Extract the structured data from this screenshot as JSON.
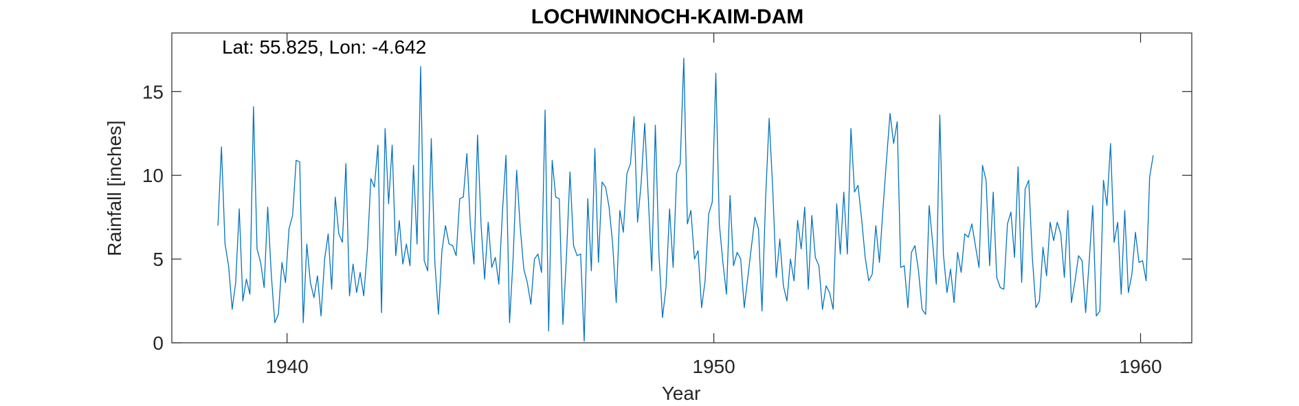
{
  "chart_data": {
    "type": "line",
    "title": "LOCHWINNOCH-KAIM-DAM",
    "annotation": "Lat: 55.825, Lon: -4.642",
    "xlabel": "Year",
    "ylabel": "Rainfall [inches]",
    "xlim": [
      1937.3,
      1961.2
    ],
    "ylim": [
      0,
      18.5
    ],
    "x_ticks": [
      1940,
      1950,
      1960
    ],
    "y_ticks": [
      0,
      5,
      10,
      15
    ],
    "grid": false,
    "series": [
      {
        "color": "#0072BD",
        "x_start": 1938.38,
        "x_step": 0.0833333,
        "values": [
          7.0,
          11.7,
          5.9,
          4.6,
          2.0,
          3.6,
          8.0,
          2.5,
          3.8,
          2.9,
          14.1,
          5.6,
          4.8,
          3.3,
          8.1,
          4.1,
          1.2,
          1.7,
          4.8,
          3.6,
          6.8,
          7.6,
          10.9,
          10.8,
          1.2,
          5.9,
          3.6,
          2.7,
          4.0,
          1.6,
          5.0,
          6.5,
          3.2,
          8.7,
          6.5,
          6.0,
          10.7,
          2.8,
          4.7,
          3.0,
          4.2,
          2.8,
          5.5,
          9.8,
          9.3,
          11.8,
          1.8,
          12.8,
          8.3,
          11.8,
          5.2,
          7.3,
          4.7,
          5.9,
          4.6,
          10.6,
          5.9,
          16.5,
          4.9,
          4.3,
          12.2,
          4.8,
          1.7,
          5.5,
          7.0,
          5.9,
          5.8,
          5.2,
          8.6,
          8.7,
          11.3,
          7.0,
          4.7,
          12.4,
          7.0,
          3.8,
          7.2,
          4.5,
          5.1,
          3.5,
          7.8,
          11.2,
          1.2,
          5.0,
          10.3,
          6.9,
          4.4,
          3.6,
          2.3,
          5.0,
          5.3,
          4.2,
          13.9,
          0.7,
          10.9,
          8.7,
          8.6,
          1.1,
          5.1,
          10.2,
          5.8,
          5.2,
          5.3,
          0.1,
          8.6,
          4.3,
          11.6,
          4.8,
          9.6,
          9.3,
          8.1,
          5.9,
          2.4,
          7.9,
          6.6,
          10.1,
          10.7,
          13.5,
          7.2,
          9.5,
          13.1,
          8.7,
          4.3,
          13.0,
          5.3,
          1.5,
          3.3,
          8.0,
          4.5,
          10.1,
          10.7,
          17.0,
          7.1,
          7.9,
          5.0,
          5.5,
          2.1,
          3.7,
          7.7,
          8.4,
          16.1,
          7.1,
          4.8,
          2.9,
          8.8,
          4.6,
          5.4,
          5.0,
          2.1,
          3.9,
          5.7,
          7.5,
          6.8,
          1.9,
          8.6,
          13.4,
          9.2,
          3.9,
          6.2,
          3.4,
          2.5,
          5.0,
          3.7,
          7.3,
          5.6,
          8.1,
          3.2,
          7.6,
          5.1,
          4.6,
          2.0,
          3.4,
          3.0,
          2.0,
          8.3,
          5.3,
          9.0,
          5.3,
          12.8,
          9.0,
          9.4,
          7.4,
          5.1,
          3.7,
          4.1,
          7.0,
          4.8,
          8.0,
          10.9,
          13.7,
          11.9,
          13.2,
          4.5,
          4.6,
          2.1,
          5.4,
          5.8,
          4.3,
          2.0,
          1.7,
          8.2,
          5.9,
          3.5,
          13.6,
          5.3,
          3.0,
          4.4,
          2.4,
          5.4,
          4.2,
          6.5,
          6.3,
          7.1,
          5.8,
          4.5,
          10.6,
          9.7,
          4.6,
          9.0,
          3.9,
          3.3,
          3.2,
          7.1,
          7.8,
          5.1,
          10.5,
          3.6,
          9.2,
          9.7,
          5.1,
          2.1,
          2.5,
          5.7,
          4.0,
          7.2,
          6.1,
          7.2,
          6.5,
          3.9,
          7.9,
          2.4,
          3.7,
          5.2,
          4.9,
          1.8,
          4.9,
          8.2,
          1.6,
          1.9,
          9.7,
          8.2,
          11.9,
          6.0,
          7.2,
          2.9,
          7.9,
          3.0,
          4.1,
          6.6,
          4.8,
          4.9,
          3.7,
          9.9,
          11.2
        ]
      }
    ]
  }
}
